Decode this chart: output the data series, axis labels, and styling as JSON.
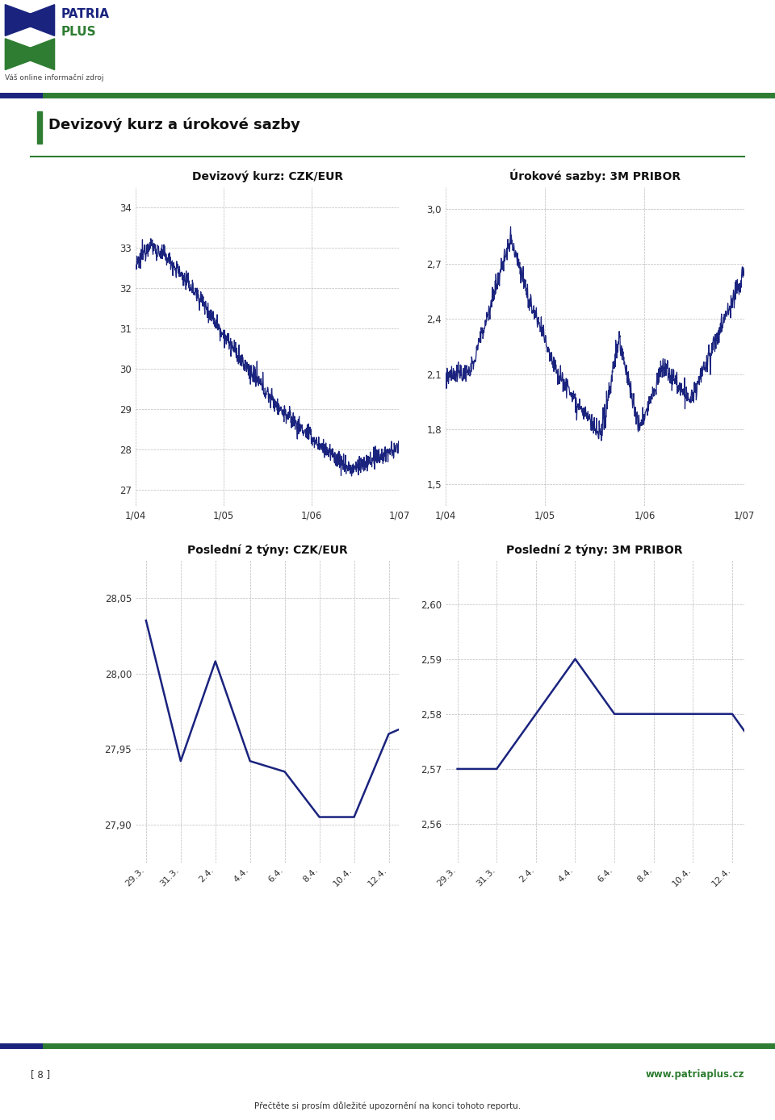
{
  "page_title": "Devizový kurz a úrokové sazby",
  "header_subtitle": "Váš online informační zdroj",
  "chart1_title": "Devizový kurz: CZK/EUR",
  "chart2_title": "Úrokové sazby: 3M PRIBOR",
  "chart3_title": "Poslední 2 týny: CZK/EUR",
  "chart4_title": "Poslední 2 týny: 3M PRIBOR",
  "chart1_yticks": [
    27,
    28,
    29,
    30,
    31,
    32,
    33,
    34
  ],
  "chart1_xticks": [
    "1/04",
    "1/05",
    "1/06",
    "1/07"
  ],
  "chart1_ylim": [
    26.6,
    34.5
  ],
  "chart2_yticks": [
    1.5,
    1.8,
    2.1,
    2.4,
    2.7,
    3.0
  ],
  "chart2_xticks": [
    "1/04",
    "1/05",
    "1/06",
    "1/07"
  ],
  "chart2_ylim": [
    1.38,
    3.12
  ],
  "chart3_yticks": [
    27.9,
    27.95,
    28.0,
    28.05
  ],
  "chart3_xtick_labels": [
    "29.3.",
    "31.3.",
    "2.4.",
    "4.4.",
    "6.4.",
    "8.4.",
    "10.4.",
    "12.4."
  ],
  "chart3_ylim": [
    27.875,
    28.075
  ],
  "chart4_yticks": [
    2.56,
    2.57,
    2.58,
    2.59,
    2.6
  ],
  "chart4_xtick_labels": [
    "29.3.",
    "31.3.",
    "2.4.",
    "4.4.",
    "6.4.",
    "8.4.",
    "10.4.",
    "12.4."
  ],
  "chart4_ylim": [
    2.553,
    2.608
  ],
  "line_color": "#1a237e",
  "grid_color": "#bbbbbb",
  "background_color": "#ffffff",
  "plot_bg_color": "#ffffff",
  "green_color": "#2e7d32",
  "dark_color": "#1a237e",
  "footer_text": "Přečtěte si prosím důležité upozornění na konci tohoto reportu.",
  "footer_page": "[ 8 ]",
  "footer_website": "www.patriaplus.cz",
  "czk_short": [
    28.035,
    27.942,
    28.008,
    27.942,
    27.935,
    27.905,
    27.905,
    27.96,
    27.97
  ],
  "czk_short_x": [
    0,
    1,
    2,
    3,
    4,
    5,
    6,
    7,
    8
  ],
  "pribor_short": [
    2.57,
    2.57,
    2.58,
    2.59,
    2.58,
    2.58,
    2.58,
    2.58,
    2.57
  ],
  "pribor_short_x": [
    0,
    1,
    2,
    3,
    4,
    5,
    6,
    7,
    8
  ]
}
